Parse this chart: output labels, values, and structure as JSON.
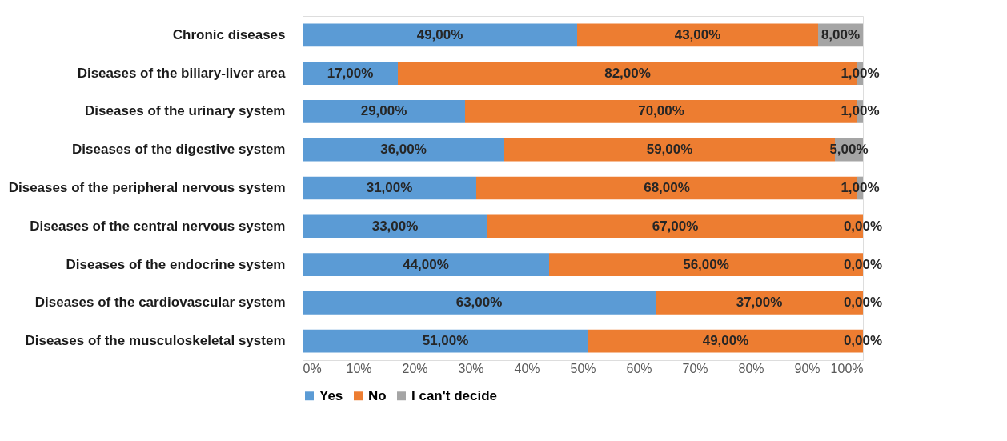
{
  "chart_data": {
    "type": "bar",
    "orientation": "horizontal",
    "stacked": true,
    "categories": [
      "Chronic diseases",
      "Diseases of the biliary-liver area",
      "Diseases of the urinary system",
      "Diseases of the digestive system",
      "Diseases of the peripheral nervous system",
      "Diseases of the central nervous system",
      "Diseases of the endocrine system",
      "Diseases of the cardiovascular system",
      "Diseases of the musculoskeletal system"
    ],
    "series": [
      {
        "name": "Yes",
        "color": "#5b9bd5",
        "values": [
          49,
          17,
          29,
          36,
          31,
          33,
          44,
          63,
          51
        ],
        "value_labels": [
          "49,00%",
          "17,00%",
          "29,00%",
          "36,00%",
          "31,00%",
          "33,00%",
          "44,00%",
          "63,00%",
          "51,00%"
        ]
      },
      {
        "name": "No",
        "color": "#ed7d31",
        "values": [
          43,
          82,
          70,
          59,
          68,
          67,
          56,
          37,
          49
        ],
        "value_labels": [
          "43,00%",
          "82,00%",
          "70,00%",
          "59,00%",
          "68,00%",
          "67,00%",
          "56,00%",
          "37,00%",
          "49,00%"
        ]
      },
      {
        "name": "I can't decide",
        "color": "#a5a5a5",
        "values": [
          8,
          1,
          1,
          5,
          1,
          0,
          0,
          0,
          0
        ],
        "value_labels": [
          "8,00%",
          "1,00%",
          "1,00%",
          "5,00%",
          "1,00%",
          "0,00%",
          "0,00%",
          "0,00%",
          "0,00%"
        ]
      }
    ],
    "xlim": [
      0,
      100
    ],
    "xticks": [
      {
        "value": 0,
        "label": "0%"
      },
      {
        "value": 10,
        "label": "10%"
      },
      {
        "value": 20,
        "label": "20%"
      },
      {
        "value": 30,
        "label": "30%"
      },
      {
        "value": 40,
        "label": "40%"
      },
      {
        "value": 50,
        "label": "50%"
      },
      {
        "value": 60,
        "label": "60%"
      },
      {
        "value": 70,
        "label": "70%"
      },
      {
        "value": 80,
        "label": "80%"
      },
      {
        "value": 90,
        "label": "90%"
      },
      {
        "value": 100,
        "label": "100%"
      }
    ],
    "grid": false,
    "legend": "bottom"
  }
}
